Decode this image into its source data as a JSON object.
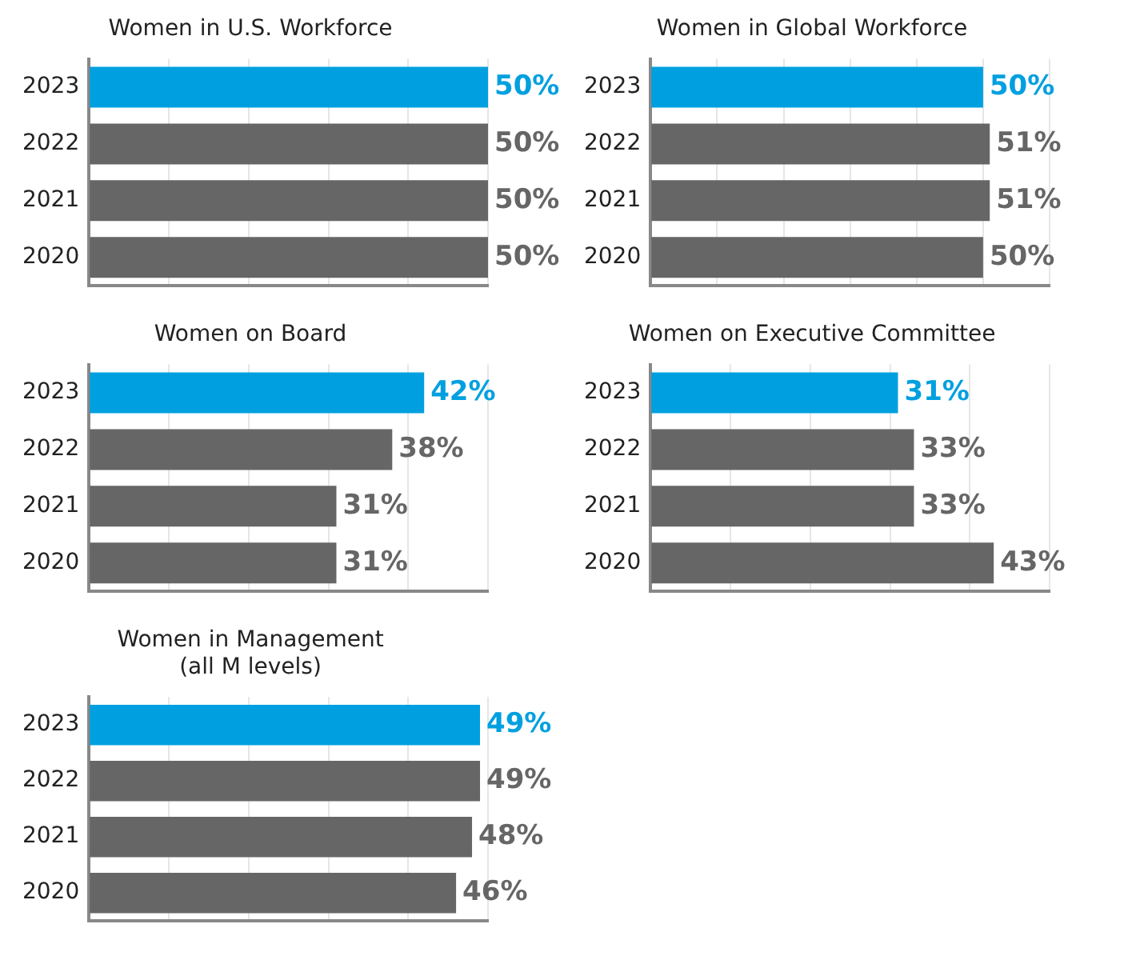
{
  "chart_data": [
    {
      "type": "bar",
      "orientation": "horizontal",
      "title": "Women in U.S. Workforce",
      "categories": [
        "2023",
        "2022",
        "2021",
        "2020"
      ],
      "values": [
        50,
        50,
        50,
        50
      ],
      "value_labels": [
        "50%",
        "50%",
        "50%",
        "50%"
      ],
      "colors": [
        "#00a0e0",
        "#666666",
        "#666666",
        "#666666"
      ],
      "grid": "x",
      "tick_labels": "y"
    },
    {
      "type": "bar",
      "orientation": "horizontal",
      "title": "Women in Global Workforce",
      "categories": [
        "2023",
        "2022",
        "2021",
        "2020"
      ],
      "values": [
        50,
        51,
        51,
        50
      ],
      "value_labels": [
        "50%",
        "51%",
        "51%",
        "50%"
      ],
      "colors": [
        "#00a0e0",
        "#666666",
        "#666666",
        "#666666"
      ],
      "grid": "x",
      "tick_labels": "y"
    },
    {
      "type": "bar",
      "orientation": "horizontal",
      "title": "Women on Board",
      "categories": [
        "2023",
        "2022",
        "2021",
        "2020"
      ],
      "values": [
        42,
        38,
        31,
        31
      ],
      "value_labels": [
        "42%",
        "38%",
        "31%",
        "31%"
      ],
      "colors": [
        "#00a0e0",
        "#666666",
        "#666666",
        "#666666"
      ],
      "grid": "x",
      "tick_labels": "y"
    },
    {
      "type": "bar",
      "orientation": "horizontal",
      "title": "Women on Executive Committee",
      "categories": [
        "2023",
        "2022",
        "2021",
        "2020"
      ],
      "values": [
        31,
        33,
        33,
        43
      ],
      "value_labels": [
        "31%",
        "33%",
        "33%",
        "43%"
      ],
      "colors": [
        "#00a0e0",
        "#666666",
        "#666666",
        "#666666"
      ],
      "grid": "x",
      "tick_labels": "y"
    },
    {
      "type": "bar",
      "orientation": "horizontal",
      "title": "Women in Management\n(all M levels)",
      "categories": [
        "2023",
        "2022",
        "2021",
        "2020"
      ],
      "values": [
        49,
        49,
        48,
        46
      ],
      "value_labels": [
        "49%",
        "49%",
        "48%",
        "46%"
      ],
      "colors": [
        "#00a0e0",
        "#666666",
        "#666666",
        "#666666"
      ],
      "grid": "x",
      "tick_labels": "y"
    }
  ]
}
